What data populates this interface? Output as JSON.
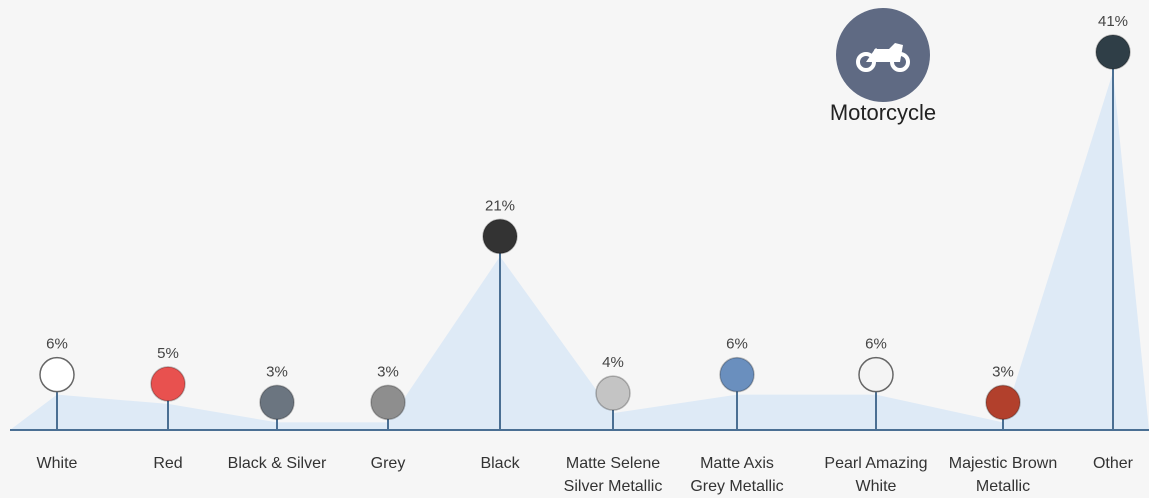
{
  "badge": {
    "label": "Motorcycle",
    "icon": "motorcycle-icon"
  },
  "chart_data": {
    "type": "line",
    "title": "",
    "xlabel": "",
    "ylabel": "",
    "ylim": [
      0,
      41
    ],
    "categories": [
      "White",
      "Red",
      "Black & Silver",
      "Grey",
      "Black",
      "Matte Selene Silver Metallic",
      "Matte Axis Grey Metallic",
      "Pearl Amazing White",
      "Majestic Brown Metallic",
      "Other"
    ],
    "label_lines": [
      [
        "White"
      ],
      [
        "Red"
      ],
      [
        "Black & Silver"
      ],
      [
        "Grey"
      ],
      [
        "Black"
      ],
      [
        "Matte Selene",
        "Silver Metallic"
      ],
      [
        "Matte Axis",
        "Grey Metallic"
      ],
      [
        "Pearl Amazing",
        "White"
      ],
      [
        "Majestic Brown",
        "Metallic"
      ],
      [
        "Other"
      ]
    ],
    "values": [
      6,
      5,
      3,
      3,
      21,
      4,
      6,
      6,
      3,
      41
    ],
    "value_labels": [
      "6%",
      "5%",
      "3%",
      "3%",
      "21%",
      "4%",
      "6%",
      "6%",
      "3%",
      "41%"
    ],
    "marker_colors": [
      "#ffffff",
      "#e8514f",
      "#6b7580",
      "#8e8e8e",
      "#333333",
      "#c4c4c4",
      "#6a8fbe",
      "#f4f4f4",
      "#b2402c",
      "#2f3e47"
    ],
    "grid": false,
    "legend": "none"
  },
  "colors": {
    "area": "#d9e8f6",
    "stem": "#4a6f93",
    "baseline": "#4a6f93",
    "badge": "#5f6a83"
  }
}
